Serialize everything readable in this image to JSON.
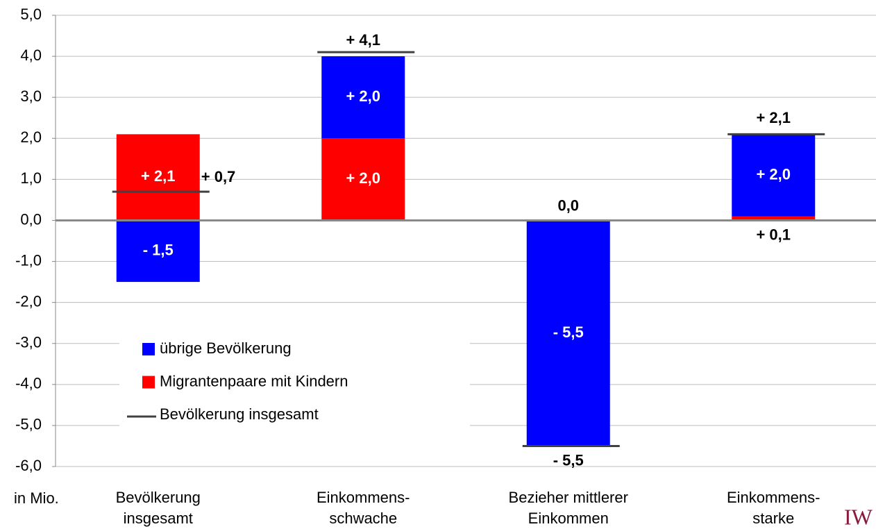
{
  "chart_data": {
    "type": "bar",
    "stacked": true,
    "categories": [
      [
        "Bevölkerung",
        "insgesamt"
      ],
      [
        "Einkommens-",
        "schwache"
      ],
      [
        "Bezieher mittlerer",
        "Einkommen"
      ],
      [
        "Einkommens-",
        "starke"
      ]
    ],
    "series": [
      {
        "name": "übrige Bevölkerung",
        "color": "#0000ff",
        "values": [
          -1.5,
          2.0,
          -5.5,
          2.0
        ],
        "value_labels": [
          "- 1,5",
          "+ 2,0",
          "- 5,5",
          "+ 2,0"
        ]
      },
      {
        "name": "Migrantenpaare mit Kindern",
        "color": "#ff0000",
        "values": [
          2.1,
          2.0,
          0.0,
          0.1
        ],
        "value_labels": [
          "+ 2,1",
          "+ 2,0",
          "0,0",
          "+ 0,1"
        ]
      },
      {
        "name": "Bevölkerung insgesamt",
        "type": "line",
        "color": "#404040",
        "values": [
          0.7,
          4.1,
          -5.5,
          2.1
        ],
        "value_labels": [
          "+ 0,7",
          "+ 4,1",
          "- 5,5",
          "+ 2,1"
        ]
      }
    ],
    "ylim": [
      -6,
      5
    ],
    "yticks": [
      {
        "value": -6,
        "label": "-6,0"
      },
      {
        "value": -5,
        "label": "-5,0"
      },
      {
        "value": -4,
        "label": "-4,0"
      },
      {
        "value": -3,
        "label": "-3,0"
      },
      {
        "value": -2,
        "label": "-2,0"
      },
      {
        "value": -1,
        "label": "-1,0"
      },
      {
        "value": 0,
        "label": "0,0"
      },
      {
        "value": 1,
        "label": "1,0"
      },
      {
        "value": 2,
        "label": "2,0"
      },
      {
        "value": 3,
        "label": "3,0"
      },
      {
        "value": 4,
        "label": "4,0"
      },
      {
        "value": 5,
        "label": "5,0"
      }
    ],
    "y_axis_label": "in Mio.",
    "grid": true,
    "legend": "lower-left",
    "logo": "IW"
  }
}
